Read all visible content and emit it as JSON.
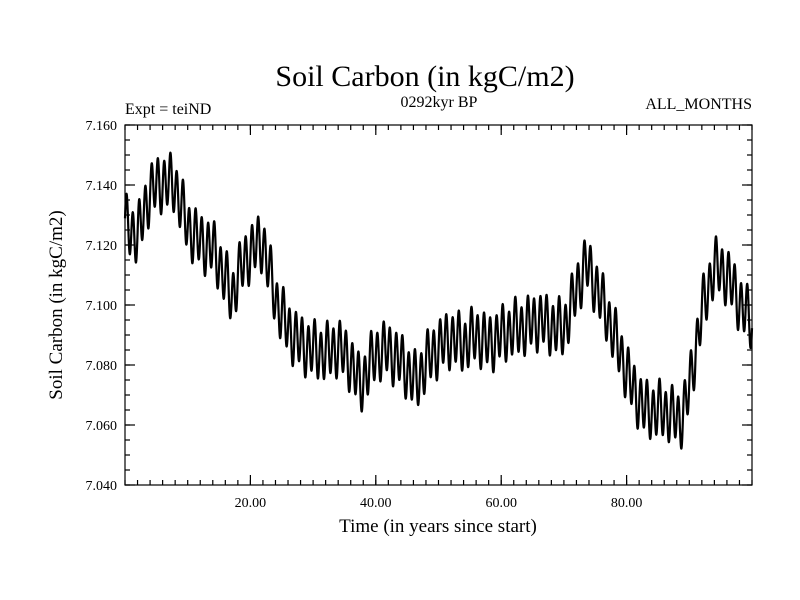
{
  "chart_data": {
    "type": "line",
    "title": "Soil Carbon (in kgC/m2)",
    "subtitle_left": "Expt = teiND",
    "subtitle_center": "0292kyr BP",
    "subtitle_right": "ALL_MONTHS",
    "xlabel": "Time (in years since start)",
    "ylabel": "Soil Carbon (in kgC/m2)",
    "xlim": [
      0,
      100
    ],
    "ylim": [
      7.04,
      7.16
    ],
    "grid": false,
    "x_ticks": [
      20,
      40,
      60,
      80
    ],
    "x_tick_labels": [
      "20.00",
      "40.00",
      "60.00",
      "80.00"
    ],
    "y_ticks": [
      7.04,
      7.06,
      7.08,
      7.1,
      7.12,
      7.14,
      7.16
    ],
    "y_tick_labels": [
      "7.040",
      "7.060",
      "7.080",
      "7.100",
      "7.120",
      "7.140",
      "7.160"
    ],
    "series": [
      {
        "name": "Soil Carbon",
        "color": "#000000",
        "seasonal_cycle_amplitude": 0.0085,
        "cycle_period_years": 1,
        "x": [
          0,
          2,
          4,
          6,
          8,
          10,
          12,
          14,
          16,
          17,
          18,
          20,
          22,
          24,
          26,
          28,
          30,
          32,
          34,
          36,
          37.5,
          40,
          42,
          44,
          46.5,
          48,
          50,
          52,
          54,
          56,
          58,
          60,
          62,
          64,
          66,
          68,
          70,
          72,
          73.5,
          75,
          77,
          79,
          81,
          83,
          85,
          87,
          88.5,
          90,
          91,
          92,
          94,
          96,
          98,
          100
        ],
        "y": [
          7.127,
          7.123,
          7.138,
          7.141,
          7.14,
          7.126,
          7.121,
          7.119,
          7.109,
          7.102,
          7.11,
          7.118,
          7.121,
          7.102,
          7.092,
          7.087,
          7.085,
          7.084,
          7.086,
          7.081,
          7.073,
          7.084,
          7.085,
          7.081,
          7.074,
          7.081,
          7.086,
          7.089,
          7.087,
          7.09,
          7.087,
          7.09,
          7.092,
          7.093,
          7.095,
          7.093,
          7.092,
          7.105,
          7.114,
          7.107,
          7.096,
          7.084,
          7.072,
          7.065,
          7.065,
          7.064,
          7.061,
          7.072,
          7.085,
          7.098,
          7.113,
          7.11,
          7.101,
          7.094
        ]
      }
    ]
  }
}
